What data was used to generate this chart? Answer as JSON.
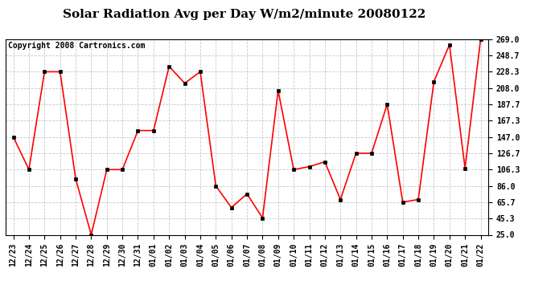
{
  "title": "Solar Radiation Avg per Day W/m2/minute 20080122",
  "copyright": "Copyright 2008 Cartronics.com",
  "labels": [
    "12/23",
    "12/24",
    "12/25",
    "12/26",
    "12/27",
    "12/28",
    "12/29",
    "12/30",
    "12/31",
    "01/01",
    "01/02",
    "01/03",
    "01/04",
    "01/05",
    "01/06",
    "01/07",
    "01/08",
    "01/09",
    "01/10",
    "01/11",
    "01/12",
    "01/13",
    "01/14",
    "01/15",
    "01/16",
    "01/17",
    "01/18",
    "01/19",
    "01/20",
    "01/21",
    "01/22"
  ],
  "values": [
    147.0,
    106.3,
    228.3,
    228.3,
    95.0,
    25.0,
    106.3,
    106.3,
    155.0,
    155.0,
    235.0,
    214.0,
    228.3,
    86.0,
    59.0,
    76.0,
    46.0,
    205.0,
    106.3,
    110.0,
    116.0,
    69.0,
    126.7,
    126.7,
    187.7,
    65.7,
    69.0,
    216.0,
    262.0,
    108.0,
    269.0
  ],
  "yticks": [
    25.0,
    45.3,
    65.7,
    86.0,
    106.3,
    126.7,
    147.0,
    167.3,
    187.7,
    208.0,
    228.3,
    248.7,
    269.0
  ],
  "ymin": 25.0,
  "ymax": 269.0,
  "line_color": "red",
  "marker_color": "black",
  "bg_color": "#ffffff",
  "plot_bg_color": "#ffffff",
  "grid_color": "#c8c8c8",
  "title_fontsize": 11,
  "tick_fontsize": 7,
  "copyright_fontsize": 7
}
